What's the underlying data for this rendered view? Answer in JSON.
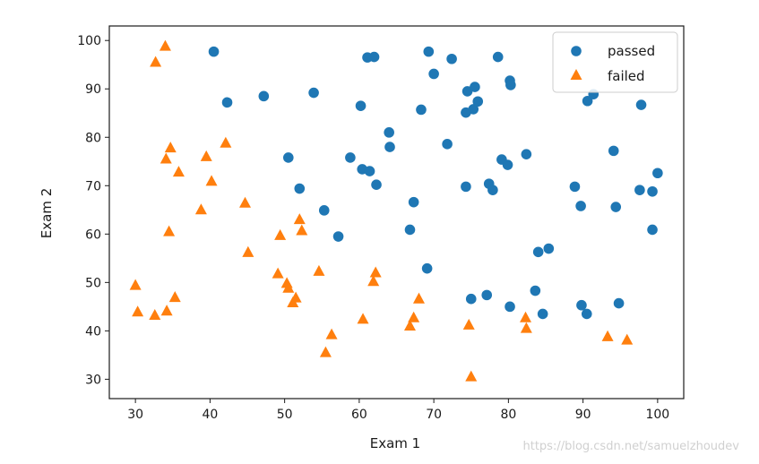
{
  "chart_data": {
    "type": "scatter",
    "title": "",
    "xlabel": "Exam 1",
    "ylabel": "Exam 2",
    "xlim": [
      26.5,
      103.5
    ],
    "ylim": [
      26,
      103
    ],
    "xticks": [
      30,
      40,
      50,
      60,
      70,
      80,
      90,
      100
    ],
    "yticks": [
      30,
      40,
      50,
      60,
      70,
      80,
      90,
      100
    ],
    "grid": false,
    "legend_position": "top-right",
    "series": [
      {
        "name": "passed",
        "marker": "circle",
        "color": "#1f77b4",
        "points": [
          [
            40.5,
            97.7
          ],
          [
            42.3,
            87.2
          ],
          [
            47.2,
            88.5
          ],
          [
            50.5,
            75.8
          ],
          [
            52.0,
            69.4
          ],
          [
            53.9,
            89.2
          ],
          [
            55.3,
            64.9
          ],
          [
            57.2,
            59.5
          ],
          [
            58.8,
            75.8
          ],
          [
            60.2,
            86.5
          ],
          [
            60.4,
            73.4
          ],
          [
            61.1,
            96.5
          ],
          [
            61.4,
            73.0
          ],
          [
            62.0,
            96.6
          ],
          [
            62.3,
            70.2
          ],
          [
            64.0,
            81.0
          ],
          [
            64.1,
            78.0
          ],
          [
            66.8,
            60.9
          ],
          [
            67.3,
            66.6
          ],
          [
            68.3,
            85.7
          ],
          [
            69.1,
            52.9
          ],
          [
            69.3,
            97.7
          ],
          [
            70.0,
            93.1
          ],
          [
            71.8,
            78.6
          ],
          [
            72.4,
            96.2
          ],
          [
            74.3,
            69.8
          ],
          [
            74.3,
            85.1
          ],
          [
            74.5,
            89.5
          ],
          [
            75.0,
            46.6
          ],
          [
            75.3,
            85.8
          ],
          [
            75.5,
            90.4
          ],
          [
            75.9,
            87.4
          ],
          [
            77.1,
            47.4
          ],
          [
            77.4,
            70.4
          ],
          [
            77.9,
            69.1
          ],
          [
            78.6,
            96.6
          ],
          [
            79.1,
            75.4
          ],
          [
            79.9,
            74.3
          ],
          [
            80.2,
            91.7
          ],
          [
            80.3,
            90.8
          ],
          [
            80.2,
            45.0
          ],
          [
            82.4,
            76.5
          ],
          [
            83.6,
            48.3
          ],
          [
            84.0,
            56.3
          ],
          [
            84.6,
            43.5
          ],
          [
            85.4,
            57.0
          ],
          [
            88.9,
            69.8
          ],
          [
            89.7,
            65.8
          ],
          [
            89.8,
            45.3
          ],
          [
            90.5,
            43.5
          ],
          [
            90.6,
            87.5
          ],
          [
            91.4,
            88.9
          ],
          [
            94.1,
            77.2
          ],
          [
            94.4,
            65.6
          ],
          [
            94.8,
            45.7
          ],
          [
            97.6,
            69.1
          ],
          [
            97.8,
            86.7
          ],
          [
            99.3,
            68.8
          ],
          [
            99.3,
            60.9
          ],
          [
            100.0,
            72.6
          ]
        ]
      },
      {
        "name": "failed",
        "marker": "triangle",
        "color": "#ff7f0e",
        "points": [
          [
            30.0,
            49.5
          ],
          [
            30.3,
            44.0
          ],
          [
            32.6,
            43.3
          ],
          [
            32.7,
            95.6
          ],
          [
            34.0,
            98.9
          ],
          [
            34.1,
            75.6
          ],
          [
            34.2,
            44.2
          ],
          [
            34.5,
            60.6
          ],
          [
            34.7,
            77.9
          ],
          [
            35.3,
            47.0
          ],
          [
            35.8,
            72.9
          ],
          [
            38.8,
            65.1
          ],
          [
            39.5,
            76.1
          ],
          [
            40.2,
            71.0
          ],
          [
            42.1,
            78.9
          ],
          [
            44.7,
            66.5
          ],
          [
            45.1,
            56.3
          ],
          [
            49.1,
            51.9
          ],
          [
            49.4,
            59.8
          ],
          [
            50.3,
            49.9
          ],
          [
            50.5,
            48.9
          ],
          [
            51.1,
            45.9
          ],
          [
            51.5,
            46.9
          ],
          [
            52.0,
            63.1
          ],
          [
            52.3,
            60.8
          ],
          [
            54.6,
            52.4
          ],
          [
            55.5,
            35.6
          ],
          [
            56.3,
            39.3
          ],
          [
            60.5,
            42.5
          ],
          [
            61.9,
            50.3
          ],
          [
            62.2,
            52.1
          ],
          [
            66.8,
            41.1
          ],
          [
            67.3,
            42.8
          ],
          [
            68.0,
            46.7
          ],
          [
            74.7,
            41.3
          ],
          [
            75.0,
            30.6
          ],
          [
            82.3,
            42.8
          ],
          [
            82.4,
            40.6
          ],
          [
            93.3,
            38.9
          ],
          [
            95.9,
            38.2
          ]
        ]
      }
    ]
  },
  "watermark": "https://blog.csdn.net/samuelzhoudev"
}
